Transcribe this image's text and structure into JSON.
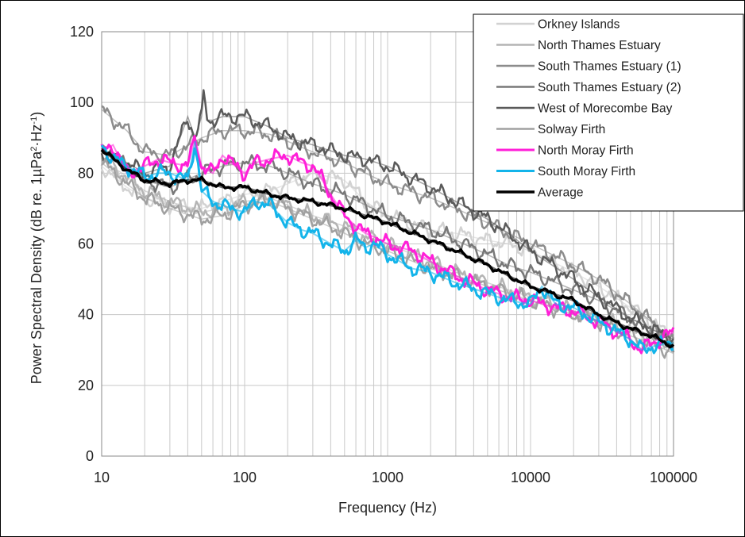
{
  "chart_data": {
    "type": "line",
    "xlabel": "Frequency (Hz)",
    "ylabel_main": "Power Spectral Density (dB re. 1µPa",
    "ylabel_sup1": "2",
    "ylabel_mid": "·Hz",
    "ylabel_sup2": "-1",
    "ylabel_end": ")",
    "x_scale": "log",
    "xlim": [
      10,
      100000
    ],
    "ylim": [
      0,
      120
    ],
    "x_ticks": [
      10,
      100,
      1000,
      10000,
      100000
    ],
    "x_tick_labels": [
      "10",
      "100",
      "1000",
      "10000",
      "100000"
    ],
    "y_ticks": [
      0,
      20,
      40,
      60,
      80,
      100,
      120
    ],
    "y_tick_labels": [
      "0",
      "20",
      "40",
      "60",
      "80",
      "100",
      "120"
    ],
    "grid": "on",
    "legend_position": "top-right",
    "series": [
      {
        "name": "Orkney Islands",
        "color": "#d2d2d2",
        "width": 2.5,
        "x": [
          10,
          15,
          20,
          30,
          50,
          70,
          100,
          150,
          200,
          300,
          500,
          700,
          1000,
          2000,
          3000,
          5000,
          7000,
          10000,
          20000,
          30000,
          50000,
          70000,
          100000
        ],
        "y": [
          82,
          76,
          73,
          71,
          70,
          72,
          74,
          75,
          77,
          80,
          78,
          72,
          68,
          64,
          63,
          61,
          60,
          58,
          52,
          48,
          42,
          38,
          33
        ]
      },
      {
        "name": "North Thames Estuary",
        "color": "#b4b4b4",
        "width": 2.5,
        "x": [
          10,
          15,
          20,
          30,
          50,
          70,
          100,
          150,
          200,
          300,
          500,
          700,
          1000,
          2000,
          3000,
          5000,
          7000,
          10000,
          20000,
          30000,
          50000,
          70000,
          100000
        ],
        "y": [
          84,
          79,
          75,
          72,
          69,
          70,
          72,
          73,
          71,
          68,
          65,
          62,
          60,
          55,
          52,
          49,
          47,
          45,
          41,
          39,
          36,
          34,
          32
        ]
      },
      {
        "name": "South Thames Estuary (1)",
        "color": "#8c8c8c",
        "width": 2.5,
        "x": [
          10,
          15,
          20,
          30,
          50,
          70,
          100,
          150,
          200,
          300,
          500,
          700,
          1000,
          2000,
          3000,
          5000,
          7000,
          10000,
          20000,
          30000,
          50000,
          70000,
          100000
        ],
        "y": [
          98,
          92,
          86,
          85,
          90,
          92,
          92,
          91,
          89,
          86,
          83,
          80,
          77,
          73,
          70,
          66,
          63,
          60,
          54,
          50,
          43,
          38,
          32
        ]
      },
      {
        "name": "South Thames Estuary (2)",
        "color": "#787878",
        "width": 2.5,
        "x": [
          10,
          15,
          20,
          30,
          50,
          70,
          100,
          150,
          200,
          300,
          500,
          700,
          1000,
          2000,
          3000,
          5000,
          7000,
          10000,
          20000,
          30000,
          50000,
          70000,
          100000
        ],
        "y": [
          87,
          82,
          78,
          76,
          80,
          82,
          83,
          82,
          80,
          77,
          74,
          71,
          68,
          64,
          61,
          57,
          54,
          52,
          47,
          44,
          39,
          36,
          32
        ]
      },
      {
        "name": "West of Morecombe Bay",
        "color": "#5a5a5a",
        "width": 2.5,
        "x": [
          10,
          15,
          20,
          30,
          40,
          45,
          50,
          52,
          55,
          60,
          70,
          100,
          150,
          200,
          300,
          500,
          700,
          1000,
          2000,
          3000,
          5000,
          7000,
          10000,
          20000,
          30000,
          50000,
          70000,
          100000
        ],
        "y": [
          86,
          83,
          80,
          82,
          96,
          90,
          96,
          103,
          95,
          95,
          96,
          96,
          93,
          90,
          88,
          85,
          84,
          82,
          76,
          72,
          67,
          63,
          58,
          50,
          45,
          39,
          36,
          33
        ]
      },
      {
        "name": "Solway Firth",
        "color": "#a0a0a0",
        "width": 2.5,
        "x": [
          10,
          15,
          20,
          30,
          50,
          70,
          100,
          150,
          200,
          300,
          500,
          700,
          1000,
          2000,
          3000,
          5000,
          7000,
          10000,
          20000,
          30000,
          50000,
          70000,
          100000
        ],
        "y": [
          83,
          77,
          73,
          70,
          67,
          68,
          71,
          72,
          70,
          67,
          63,
          60,
          58,
          53,
          51,
          48,
          46,
          44,
          40,
          38,
          34,
          32,
          29
        ]
      },
      {
        "name": "North Moray Firth",
        "color": "#ff1fd8",
        "width": 3,
        "x": [
          10,
          12,
          15,
          20,
          25,
          30,
          40,
          45,
          50,
          60,
          70,
          80,
          100,
          120,
          150,
          200,
          250,
          300,
          350,
          400,
          500,
          600,
          700,
          800,
          1000,
          1500,
          2000,
          3000,
          5000,
          7000,
          10000,
          15000,
          20000,
          30000,
          50000,
          60000,
          70000,
          100000
        ],
        "y": [
          86,
          88,
          80,
          82,
          84,
          83,
          82,
          90,
          82,
          80,
          85,
          83,
          80,
          83,
          84,
          85,
          83,
          82,
          78,
          74,
          68,
          65,
          63,
          62,
          60,
          58,
          55,
          51,
          47,
          45,
          44,
          42,
          41,
          38,
          33,
          30,
          32,
          35
        ]
      },
      {
        "name": "South Moray Firth",
        "color": "#13b4ea",
        "width": 3,
        "x": [
          10,
          12,
          15,
          20,
          25,
          30,
          40,
          45,
          50,
          60,
          70,
          80,
          100,
          120,
          150,
          200,
          250,
          300,
          400,
          500,
          600,
          700,
          800,
          1000,
          1500,
          2000,
          3000,
          5000,
          7000,
          10000,
          12000,
          15000,
          20000,
          30000,
          50000,
          60000,
          70000,
          100000
        ],
        "y": [
          88,
          84,
          82,
          79,
          80,
          80,
          78,
          89,
          75,
          72,
          71,
          70,
          69,
          72,
          71,
          66,
          64,
          63,
          60,
          58,
          61,
          59,
          60,
          57,
          53,
          52,
          49,
          46,
          44,
          43,
          48,
          43,
          42,
          38,
          33,
          30,
          31,
          32
        ]
      },
      {
        "name": "Average",
        "color": "#000000",
        "width": 3.5,
        "x": [
          10,
          12,
          15,
          20,
          30,
          40,
          50,
          70,
          100,
          150,
          200,
          300,
          500,
          700,
          1000,
          2000,
          3000,
          5000,
          7000,
          10000,
          20000,
          30000,
          50000,
          70000,
          100000
        ],
        "y": [
          87,
          84,
          81,
          78,
          77,
          78,
          78,
          76,
          76,
          74,
          73,
          72,
          70,
          68,
          66,
          61,
          58,
          54,
          51,
          48,
          44,
          40,
          36,
          34,
          31
        ]
      }
    ]
  }
}
